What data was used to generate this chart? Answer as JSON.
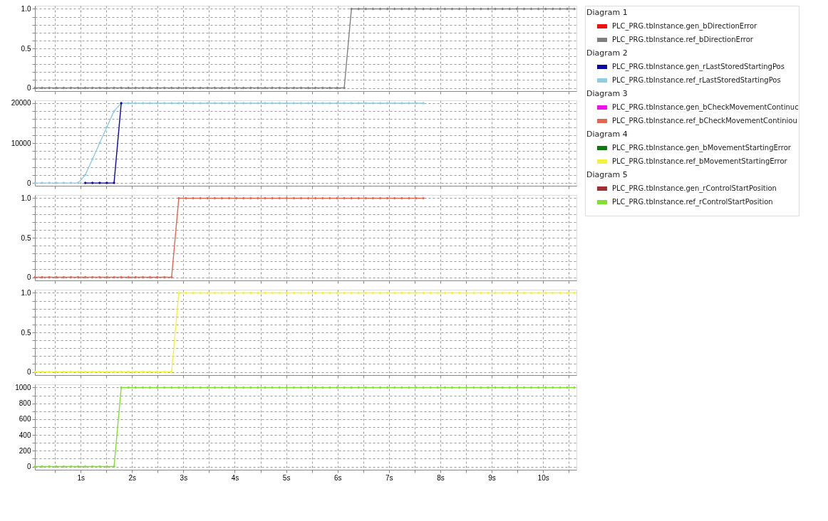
{
  "chart_data": [
    {
      "type": "line",
      "legend": "right",
      "legend_title": "Diagram 1",
      "grid": true,
      "marker": "diamond",
      "line_style": "solid",
      "tick_labels": "y",
      "x": [
        0.11,
        0.25,
        0.39,
        0.53,
        0.67,
        0.81,
        0.95,
        1.09,
        1.23,
        1.37,
        1.51,
        1.65,
        1.79,
        1.93,
        2.07,
        2.21,
        2.35,
        2.49,
        2.63,
        2.77,
        2.91,
        3.05,
        3.19,
        3.33,
        3.47,
        3.61,
        3.75,
        3.89,
        4.03,
        4.17,
        4.31,
        4.45,
        4.59,
        4.73,
        4.87,
        5.01,
        5.15,
        5.29,
        5.43,
        5.57,
        5.71,
        5.85,
        5.99,
        6.13,
        6.27,
        6.41,
        6.55,
        6.69,
        6.83,
        6.97,
        7.11,
        7.25,
        7.39,
        7.53,
        7.67,
        7.81,
        7.95,
        8.09,
        8.23,
        8.37,
        8.51,
        8.65,
        8.79,
        8.93,
        9.07,
        9.21,
        9.35,
        9.49,
        9.63,
        9.77,
        9.91,
        10.05,
        10.19,
        10.33,
        10.47,
        10.61
      ],
      "xlim": [
        0.11,
        10.65
      ],
      "xticks": [
        {
          "value": 0.5,
          "label": null
        },
        {
          "value": 1,
          "label": null
        },
        {
          "value": 1.5,
          "label": null
        },
        {
          "value": 2,
          "label": null
        },
        {
          "value": 2.5,
          "label": null
        },
        {
          "value": 3,
          "label": null
        },
        {
          "value": 3.5,
          "label": null
        },
        {
          "value": 4,
          "label": null
        },
        {
          "value": 4.5,
          "label": null
        },
        {
          "value": 5,
          "label": null
        },
        {
          "value": 5.5,
          "label": null
        },
        {
          "value": 6,
          "label": null
        },
        {
          "value": 6.5,
          "label": null
        },
        {
          "value": 7,
          "label": null
        },
        {
          "value": 7.5,
          "label": null
        },
        {
          "value": 8,
          "label": null
        },
        {
          "value": 8.5,
          "label": null
        },
        {
          "value": 9,
          "label": null
        },
        {
          "value": 9.5,
          "label": null
        },
        {
          "value": 10,
          "label": null
        },
        {
          "value": 10.5,
          "label": null
        }
      ],
      "ylim": [
        -0.04,
        1.04
      ],
      "yticks": [
        0,
        {
          "value": 0.1,
          "label": null
        },
        {
          "value": 0.2,
          "label": null
        },
        {
          "value": 0.3,
          "label": null
        },
        {
          "value": 0.4,
          "label": null
        },
        0.5,
        {
          "value": 0.6,
          "label": null
        },
        {
          "value": 0.7,
          "label": null
        },
        {
          "value": 0.8,
          "label": null
        },
        {
          "value": 0.9,
          "label": null
        },
        {
          "value": 1,
          "label": "1.0"
        }
      ],
      "series": [
        {
          "name": "PLC_PRG.tbInstance.gen_bDirectionError",
          "color": "#ee1111",
          "values": [
            null,
            null,
            null,
            null,
            null,
            null,
            null,
            null,
            null,
            null,
            null,
            null,
            null,
            null,
            null,
            null,
            null,
            null,
            null,
            null,
            null,
            null,
            null,
            null,
            null,
            null,
            null,
            null,
            null,
            null,
            null,
            null,
            null,
            null,
            null,
            null,
            null,
            null,
            null,
            null,
            null,
            null,
            null,
            null,
            null,
            null,
            null,
            null,
            null,
            null,
            null,
            null,
            null,
            null,
            null,
            null,
            null,
            null,
            null,
            null,
            null,
            null,
            null,
            null,
            null,
            null,
            null,
            null,
            null,
            null,
            null,
            null,
            null,
            null,
            null,
            null
          ]
        },
        {
          "name": "PLC_PRG.tbInstance.ref_bDirectionError",
          "color": "#808080",
          "values": [
            0,
            0,
            0,
            0,
            0,
            0,
            0,
            0,
            0,
            0,
            0,
            0,
            0,
            0,
            0,
            0,
            0,
            0,
            0,
            0,
            0,
            0,
            0,
            0,
            0,
            0,
            0,
            0,
            0,
            0,
            0,
            0,
            0,
            0,
            0,
            0,
            0,
            0,
            0,
            0,
            0,
            0,
            0,
            0,
            1,
            1,
            1,
            1,
            1,
            1,
            1,
            1,
            1,
            1,
            1,
            1,
            1,
            1,
            1,
            1,
            1,
            1,
            1,
            1,
            1,
            1,
            1,
            1,
            1,
            1,
            1,
            1,
            1,
            1,
            1,
            1
          ]
        }
      ]
    },
    {
      "type": "line",
      "legend": "right",
      "legend_title": "Diagram 2",
      "grid": true,
      "marker": "diamond",
      "line_style": "solid",
      "tick_labels": "y",
      "x": [
        0.11,
        0.25,
        0.39,
        0.53,
        0.67,
        0.81,
        0.95,
        1.09,
        1.23,
        1.37,
        1.51,
        1.65,
        1.79,
        1.93,
        2.07,
        2.21,
        2.35,
        2.49,
        2.63,
        2.77,
        2.91,
        3.05,
        3.19,
        3.33,
        3.47,
        3.61,
        3.75,
        3.89,
        4.03,
        4.17,
        4.31,
        4.45,
        4.59,
        4.73,
        4.87,
        5.01,
        5.15,
        5.29,
        5.43,
        5.57,
        5.71,
        5.85,
        5.99,
        6.13,
        6.27,
        6.41,
        6.55,
        6.69,
        6.83,
        6.97,
        7.11,
        7.25,
        7.39,
        7.53,
        7.67
      ],
      "xlim": [
        0.11,
        10.65
      ],
      "xticks": [
        {
          "value": 0.5,
          "label": null
        },
        {
          "value": 1,
          "label": null
        },
        {
          "value": 1.5,
          "label": null
        },
        {
          "value": 2,
          "label": null
        },
        {
          "value": 2.5,
          "label": null
        },
        {
          "value": 3,
          "label": null
        },
        {
          "value": 3.5,
          "label": null
        },
        {
          "value": 4,
          "label": null
        },
        {
          "value": 4.5,
          "label": null
        },
        {
          "value": 5,
          "label": null
        },
        {
          "value": 5.5,
          "label": null
        },
        {
          "value": 6,
          "label": null
        },
        {
          "value": 6.5,
          "label": null
        },
        {
          "value": 7,
          "label": null
        },
        {
          "value": 7.5,
          "label": null
        },
        {
          "value": 8,
          "label": null
        },
        {
          "value": 8.5,
          "label": null
        },
        {
          "value": 9,
          "label": null
        },
        {
          "value": 9.5,
          "label": null
        },
        {
          "value": 10,
          "label": null
        },
        {
          "value": 10.5,
          "label": null
        }
      ],
      "ylim": [
        -700,
        20700
      ],
      "yticks": [
        0,
        {
          "value": 2000,
          "label": null
        },
        {
          "value": 4000,
          "label": null
        },
        {
          "value": 6000,
          "label": null
        },
        {
          "value": 8000,
          "label": null
        },
        10000,
        {
          "value": 12000,
          "label": null
        },
        {
          "value": 14000,
          "label": null
        },
        {
          "value": 16000,
          "label": null
        },
        {
          "value": 18000,
          "label": null
        },
        20000
      ],
      "series": [
        {
          "name": "PLC_PRG.tbInstance.gen_rLastStoredStartingPos",
          "color": "#0a0aa0",
          "values": [
            null,
            null,
            null,
            null,
            null,
            null,
            null,
            0,
            0,
            0,
            0,
            0,
            20000,
            null,
            null,
            null,
            null,
            null,
            null,
            null,
            null,
            null,
            null,
            null,
            null,
            null,
            null,
            null,
            null,
            null,
            null,
            null,
            null,
            null,
            null,
            null,
            null,
            null,
            null,
            null,
            null,
            null,
            null,
            null,
            null,
            null,
            null,
            null,
            null,
            null,
            null,
            null,
            null,
            null,
            null
          ]
        },
        {
          "name": "PLC_PRG.tbInstance.ref_rLastStoredStartingPos",
          "color": "#8fcde0",
          "values": [
            0,
            0,
            0,
            0,
            0,
            0,
            0,
            2000,
            6000,
            10000,
            14000,
            18000,
            20000,
            20000,
            20000,
            20000,
            20000,
            20000,
            20000,
            20000,
            20000,
            20000,
            20000,
            20000,
            20000,
            20000,
            20000,
            20000,
            20000,
            20000,
            20000,
            20000,
            20000,
            20000,
            20000,
            20000,
            20000,
            20000,
            20000,
            20000,
            20000,
            20000,
            20000,
            20000,
            20000,
            20000,
            20000,
            20000,
            20000,
            20000,
            20000,
            20000,
            20000,
            20000,
            20000
          ]
        }
      ]
    },
    {
      "type": "line",
      "legend": "right",
      "legend_title": "Diagram 3",
      "grid": true,
      "marker": "diamond",
      "line_style": "solid",
      "tick_labels": "y",
      "x": [
        0.11,
        0.25,
        0.39,
        0.53,
        0.67,
        0.81,
        0.95,
        1.09,
        1.23,
        1.37,
        1.51,
        1.65,
        1.79,
        1.93,
        2.07,
        2.21,
        2.35,
        2.49,
        2.63,
        2.77,
        2.91,
        3.05,
        3.19,
        3.33,
        3.47,
        3.61,
        3.75,
        3.89,
        4.03,
        4.17,
        4.31,
        4.45,
        4.59,
        4.73,
        4.87,
        5.01,
        5.15,
        5.29,
        5.43,
        5.57,
        5.71,
        5.85,
        5.99,
        6.13,
        6.27,
        6.41,
        6.55,
        6.69,
        6.83,
        6.97,
        7.11,
        7.25,
        7.39,
        7.53,
        7.67
      ],
      "xlim": [
        0.11,
        10.65
      ],
      "xticks": [
        {
          "value": 0.5,
          "label": null
        },
        {
          "value": 1,
          "label": null
        },
        {
          "value": 1.5,
          "label": null
        },
        {
          "value": 2,
          "label": null
        },
        {
          "value": 2.5,
          "label": null
        },
        {
          "value": 3,
          "label": null
        },
        {
          "value": 3.5,
          "label": null
        },
        {
          "value": 4,
          "label": null
        },
        {
          "value": 4.5,
          "label": null
        },
        {
          "value": 5,
          "label": null
        },
        {
          "value": 5.5,
          "label": null
        },
        {
          "value": 6,
          "label": null
        },
        {
          "value": 6.5,
          "label": null
        },
        {
          "value": 7,
          "label": null
        },
        {
          "value": 7.5,
          "label": null
        },
        {
          "value": 8,
          "label": null
        },
        {
          "value": 8.5,
          "label": null
        },
        {
          "value": 9,
          "label": null
        },
        {
          "value": 9.5,
          "label": null
        },
        {
          "value": 10,
          "label": null
        },
        {
          "value": 10.5,
          "label": null
        }
      ],
      "ylim": [
        -0.04,
        1.04
      ],
      "yticks": [
        0,
        {
          "value": 0.1,
          "label": null
        },
        {
          "value": 0.2,
          "label": null
        },
        {
          "value": 0.3,
          "label": null
        },
        {
          "value": 0.4,
          "label": null
        },
        0.5,
        {
          "value": 0.6,
          "label": null
        },
        {
          "value": 0.7,
          "label": null
        },
        {
          "value": 0.8,
          "label": null
        },
        {
          "value": 0.9,
          "label": null
        },
        {
          "value": 1,
          "label": "1.0"
        }
      ],
      "series": [
        {
          "name": "PLC_PRG.tbInstance.gen_bCheckMovementContinuc",
          "color": "#ee11ee",
          "values": [
            null,
            null,
            null,
            null,
            null,
            null,
            null,
            null,
            null,
            null,
            null,
            null,
            null,
            null,
            null,
            null,
            null,
            null,
            null,
            null,
            null,
            null,
            null,
            null,
            null,
            null,
            null,
            null,
            null,
            null,
            null,
            null,
            null,
            null,
            null,
            null,
            null,
            null,
            null,
            null,
            null,
            null,
            null,
            null,
            null,
            null,
            null,
            null,
            null,
            null,
            null,
            null,
            null,
            null,
            null
          ]
        },
        {
          "name": "PLC_PRG.tbInstance.ref_bCheckMovementContiniou",
          "color": "#e0684e",
          "values": [
            0,
            0,
            0,
            0,
            0,
            0,
            0,
            0,
            0,
            0,
            0,
            0,
            0,
            0,
            0,
            0,
            0,
            0,
            0,
            0,
            1,
            1,
            1,
            1,
            1,
            1,
            1,
            1,
            1,
            1,
            1,
            1,
            1,
            1,
            1,
            1,
            1,
            1,
            1,
            1,
            1,
            1,
            1,
            1,
            1,
            1,
            1,
            1,
            1,
            1,
            1,
            1,
            1,
            1,
            1
          ]
        }
      ]
    },
    {
      "type": "line",
      "legend": "right",
      "legend_title": "Diagram 4",
      "grid": true,
      "marker": "diamond",
      "line_style": "solid",
      "tick_labels": "y",
      "x": [
        0.11,
        0.25,
        0.39,
        0.53,
        0.67,
        0.81,
        0.95,
        1.09,
        1.23,
        1.37,
        1.51,
        1.65,
        1.79,
        1.93,
        2.07,
        2.21,
        2.35,
        2.49,
        2.63,
        2.77,
        2.91,
        3.05,
        3.19,
        3.33,
        3.47,
        3.61,
        3.75,
        3.89,
        4.03,
        4.17,
        4.31,
        4.45,
        4.59,
        4.73,
        4.87,
        5.01,
        5.15,
        5.29,
        5.43,
        5.57,
        5.71,
        5.85,
        5.99,
        6.13,
        6.27,
        6.41,
        6.55,
        6.69,
        6.83,
        6.97,
        7.11,
        7.25,
        7.39,
        7.53,
        7.67,
        7.81,
        7.95,
        8.09,
        8.23,
        8.37,
        8.51,
        8.65,
        8.79,
        8.93,
        9.07,
        9.21,
        9.35,
        9.49,
        9.63,
        9.77,
        9.91,
        10.05,
        10.19,
        10.33,
        10.47,
        10.61
      ],
      "xlim": [
        0.11,
        10.65
      ],
      "xticks": [
        {
          "value": 0.5,
          "label": null
        },
        {
          "value": 1,
          "label": null
        },
        {
          "value": 1.5,
          "label": null
        },
        {
          "value": 2,
          "label": null
        },
        {
          "value": 2.5,
          "label": null
        },
        {
          "value": 3,
          "label": null
        },
        {
          "value": 3.5,
          "label": null
        },
        {
          "value": 4,
          "label": null
        },
        {
          "value": 4.5,
          "label": null
        },
        {
          "value": 5,
          "label": null
        },
        {
          "value": 5.5,
          "label": null
        },
        {
          "value": 6,
          "label": null
        },
        {
          "value": 6.5,
          "label": null
        },
        {
          "value": 7,
          "label": null
        },
        {
          "value": 7.5,
          "label": null
        },
        {
          "value": 8,
          "label": null
        },
        {
          "value": 8.5,
          "label": null
        },
        {
          "value": 9,
          "label": null
        },
        {
          "value": 9.5,
          "label": null
        },
        {
          "value": 10,
          "label": null
        },
        {
          "value": 10.5,
          "label": null
        }
      ],
      "ylim": [
        -0.04,
        1.04
      ],
      "yticks": [
        0,
        {
          "value": 0.1,
          "label": null
        },
        {
          "value": 0.2,
          "label": null
        },
        {
          "value": 0.3,
          "label": null
        },
        {
          "value": 0.4,
          "label": null
        },
        0.5,
        {
          "value": 0.6,
          "label": null
        },
        {
          "value": 0.7,
          "label": null
        },
        {
          "value": 0.8,
          "label": null
        },
        {
          "value": 0.9,
          "label": null
        },
        {
          "value": 1,
          "label": "1.0"
        }
      ],
      "series": [
        {
          "name": "PLC_PRG.tbInstance.gen_bMovementStartingError",
          "color": "#117711",
          "values": [
            null,
            null,
            null,
            null,
            null,
            null,
            null,
            null,
            null,
            null,
            null,
            null,
            null,
            null,
            null,
            null,
            null,
            null,
            null,
            null,
            null,
            null,
            null,
            null,
            null,
            null,
            null,
            null,
            null,
            null,
            null,
            null,
            null,
            null,
            null,
            null,
            null,
            null,
            null,
            null,
            null,
            null,
            null,
            null,
            null,
            null,
            null,
            null,
            null,
            null,
            null,
            null,
            null,
            null,
            null,
            null,
            null,
            null,
            null,
            null,
            null,
            null,
            null,
            null,
            null,
            null,
            null,
            null,
            null,
            null,
            null,
            null,
            null,
            null,
            null,
            null
          ]
        },
        {
          "name": "PLC_PRG.tbInstance.ref_bMovementStartingError",
          "color": "#f2f23a",
          "values": [
            0,
            0,
            0,
            0,
            0,
            0,
            0,
            0,
            0,
            0,
            0,
            0,
            0,
            0,
            0,
            0,
            0,
            0,
            0,
            0,
            1,
            1,
            1,
            1,
            1,
            1,
            1,
            1,
            1,
            1,
            1,
            1,
            1,
            1,
            1,
            1,
            1,
            1,
            1,
            1,
            1,
            1,
            1,
            1,
            1,
            1,
            1,
            1,
            1,
            1,
            1,
            1,
            1,
            1,
            1,
            1,
            1,
            1,
            1,
            1,
            1,
            1,
            1,
            1,
            1,
            1,
            1,
            1,
            1,
            1,
            1,
            1,
            1,
            1,
            1,
            1
          ]
        }
      ]
    },
    {
      "type": "line",
      "legend": "right",
      "legend_title": "Diagram 5",
      "grid": true,
      "marker": "diamond",
      "line_style": "solid",
      "x": [
        0.11,
        0.25,
        0.39,
        0.53,
        0.67,
        0.81,
        0.95,
        1.09,
        1.23,
        1.37,
        1.51,
        1.65,
        1.79,
        1.93,
        2.07,
        2.21,
        2.35,
        2.49,
        2.63,
        2.77,
        2.91,
        3.05,
        3.19,
        3.33,
        3.47,
        3.61,
        3.75,
        3.89,
        4.03,
        4.17,
        4.31,
        4.45,
        4.59,
        4.73,
        4.87,
        5.01,
        5.15,
        5.29,
        5.43,
        5.57,
        5.71,
        5.85,
        5.99,
        6.13,
        6.27,
        6.41,
        6.55,
        6.69,
        6.83,
        6.97,
        7.11,
        7.25,
        7.39,
        7.53,
        7.67,
        7.81,
        7.95,
        8.09,
        8.23,
        8.37,
        8.51,
        8.65,
        8.79,
        8.93,
        9.07,
        9.21,
        9.35,
        9.49,
        9.63,
        9.77,
        9.91,
        10.05,
        10.19,
        10.33,
        10.47,
        10.61
      ],
      "xlim": [
        0.11,
        10.65
      ],
      "xticks": [
        {
          "value": 0.5,
          "label": null
        },
        {
          "value": 1,
          "label": "1s"
        },
        {
          "value": 1.5,
          "label": null
        },
        {
          "value": 2,
          "label": "2s"
        },
        {
          "value": 2.5,
          "label": null
        },
        {
          "value": 3,
          "label": "3s"
        },
        {
          "value": 3.5,
          "label": null
        },
        {
          "value": 4,
          "label": "4s"
        },
        {
          "value": 4.5,
          "label": null
        },
        {
          "value": 5,
          "label": "5s"
        },
        {
          "value": 5.5,
          "label": null
        },
        {
          "value": 6,
          "label": "6s"
        },
        {
          "value": 6.5,
          "label": null
        },
        {
          "value": 7,
          "label": "7s"
        },
        {
          "value": 7.5,
          "label": null
        },
        {
          "value": 8,
          "label": "8s"
        },
        {
          "value": 8.5,
          "label": null
        },
        {
          "value": 9,
          "label": "9s"
        },
        {
          "value": 9.5,
          "label": null
        },
        {
          "value": 10,
          "label": "10s"
        },
        {
          "value": 10.5,
          "label": null
        }
      ],
      "ylim": [
        -40,
        1040
      ],
      "yticks": [
        0,
        {
          "value": 100,
          "label": null
        },
        200,
        {
          "value": 300,
          "label": null
        },
        400,
        {
          "value": 500,
          "label": null
        },
        600,
        {
          "value": 700,
          "label": null
        },
        800,
        {
          "value": 900,
          "label": null
        },
        1000
      ],
      "series": [
        {
          "name": "PLC_PRG.tbInstance.gen_rControlStartPosition",
          "color": "#a03030",
          "values": [
            null,
            null,
            null,
            null,
            null,
            null,
            null,
            null,
            null,
            null,
            null,
            null,
            null,
            null,
            null,
            null,
            null,
            null,
            null,
            null,
            null,
            null,
            null,
            null,
            null,
            null,
            null,
            null,
            null,
            null,
            null,
            null,
            null,
            null,
            null,
            null,
            null,
            null,
            null,
            null,
            null,
            null,
            null,
            null,
            null,
            null,
            null,
            null,
            null,
            null,
            null,
            null,
            null,
            null,
            null,
            null,
            null,
            null,
            null,
            null,
            null,
            null,
            null,
            null,
            null,
            null,
            null,
            null,
            null,
            null,
            null,
            null,
            null,
            null,
            null,
            null
          ]
        },
        {
          "name": "PLC_PRG.tbInstance.ref_rControlStartPosition",
          "color": "#7fe030",
          "values": [
            0,
            0,
            0,
            0,
            0,
            0,
            0,
            0,
            0,
            0,
            0,
            0,
            1000,
            1000,
            1000,
            1000,
            1000,
            1000,
            1000,
            1000,
            1000,
            1000,
            1000,
            1000,
            1000,
            1000,
            1000,
            1000,
            1000,
            1000,
            1000,
            1000,
            1000,
            1000,
            1000,
            1000,
            1000,
            1000,
            1000,
            1000,
            1000,
            1000,
            1000,
            1000,
            1000,
            1000,
            1000,
            1000,
            1000,
            1000,
            1000,
            1000,
            1000,
            1000,
            1000,
            1000,
            1000,
            1000,
            1000,
            1000,
            1000,
            1000,
            1000,
            1000,
            1000,
            1000,
            1000,
            1000,
            1000,
            1000,
            1000,
            1000,
            1000,
            1000,
            1000,
            1000
          ]
        }
      ]
    }
  ]
}
